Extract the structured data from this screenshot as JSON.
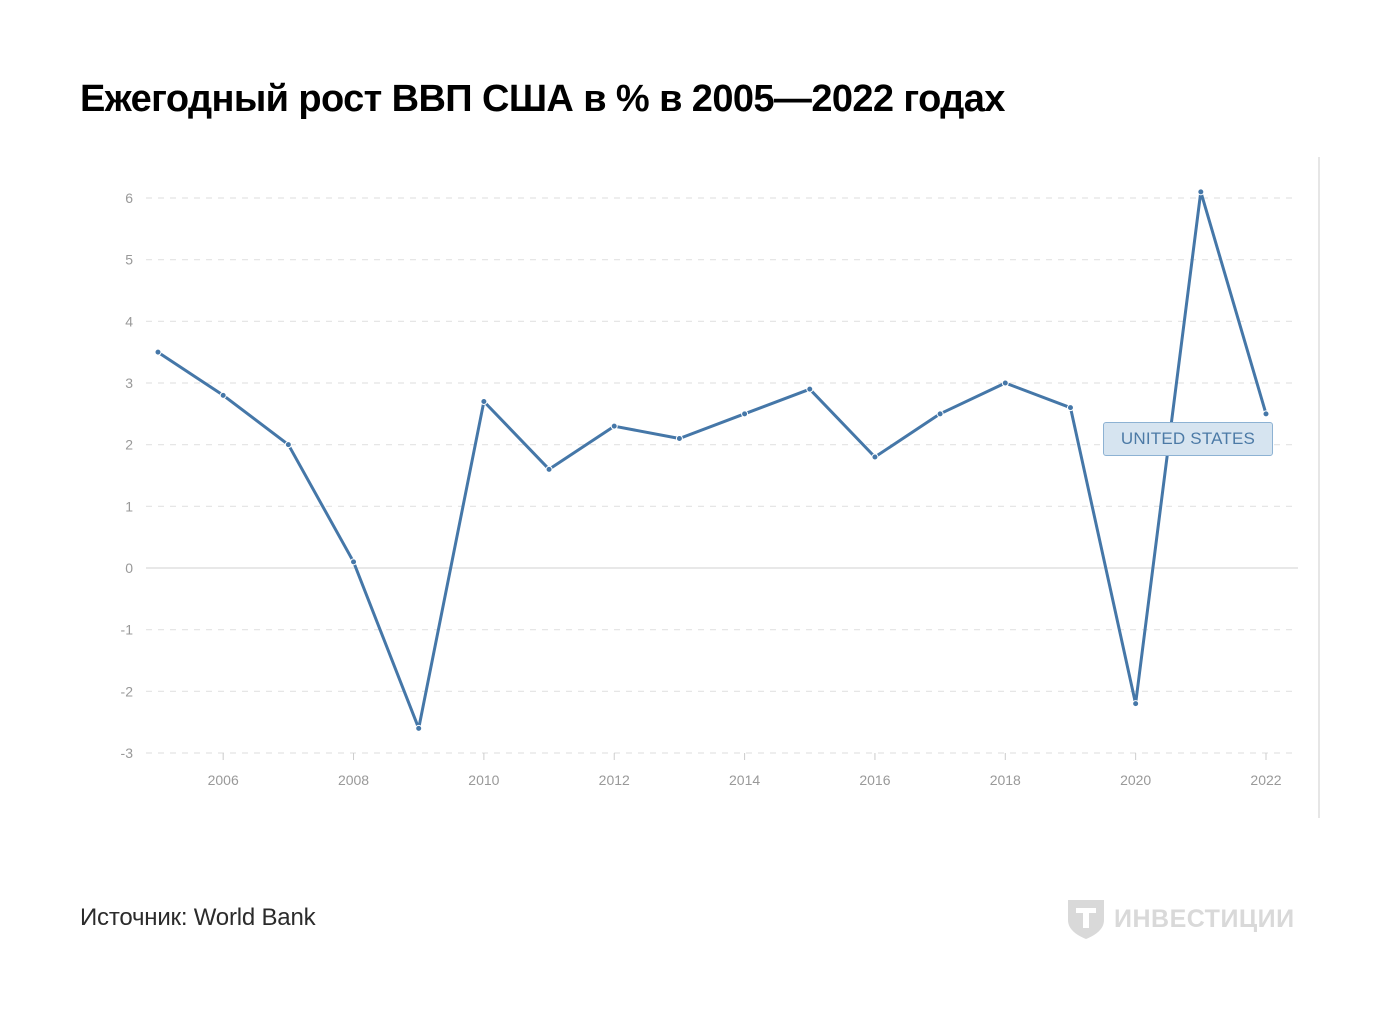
{
  "title": "Ежегодный рост ВВП США в % в 2005—2022 годах",
  "source": "Источник: World Bank",
  "brand": {
    "logo_icon": "tinkoff-shield-icon",
    "text": "ИНВЕСТИЦИИ"
  },
  "colors": {
    "line": "#4577a8",
    "grid": "#e3e3e3",
    "axis_text": "#999999"
  },
  "chart_data": {
    "type": "line",
    "title": "Ежегодный рост ВВП США в % в 2005—2022 годах",
    "xlabel": "",
    "ylabel": "",
    "x": [
      2005,
      2006,
      2007,
      2008,
      2009,
      2010,
      2011,
      2012,
      2013,
      2014,
      2015,
      2016,
      2017,
      2018,
      2019,
      2020,
      2021,
      2022
    ],
    "series": [
      {
        "name": "UNITED STATES",
        "values": [
          3.5,
          2.8,
          2.0,
          0.1,
          -2.6,
          2.7,
          1.6,
          2.3,
          2.1,
          2.5,
          2.9,
          1.8,
          2.5,
          3.0,
          2.6,
          -2.2,
          6.1,
          2.5
        ]
      }
    ],
    "xticks": [
      "2006",
      "2008",
      "2010",
      "2012",
      "2014",
      "2016",
      "2018",
      "2020",
      "2022"
    ],
    "yticks": [
      "6",
      "5",
      "4",
      "3",
      "2",
      "1",
      "0",
      "-1",
      "-2",
      "-3"
    ],
    "ylim": [
      -3,
      6
    ],
    "xlim": [
      2005,
      2022
    ],
    "grid": true,
    "legend": "right, inline label"
  }
}
